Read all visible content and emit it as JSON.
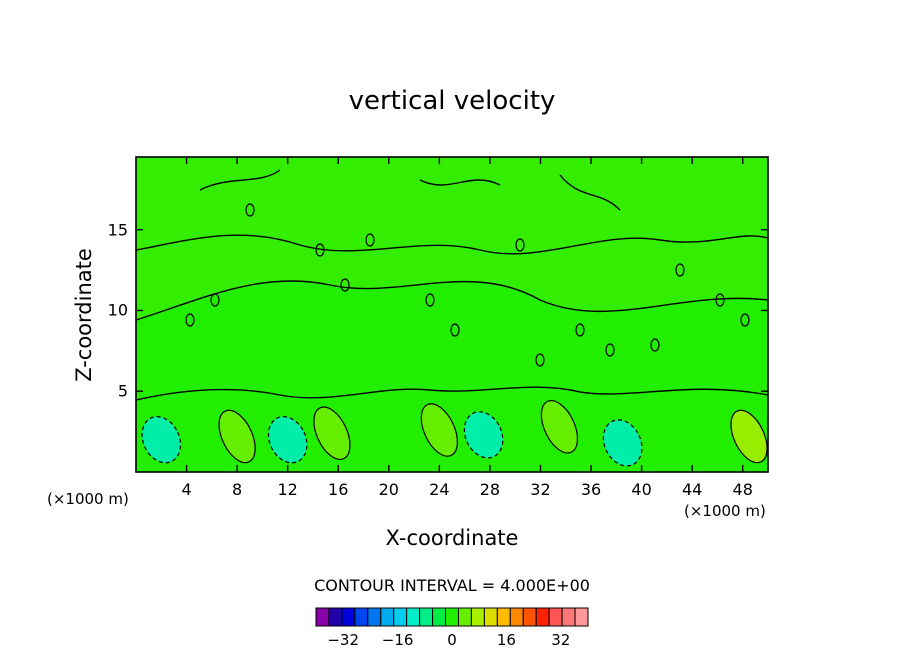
{
  "chart_data": {
    "type": "heatmap",
    "title": "vertical velocity",
    "xlabel": "X-coordinate",
    "ylabel": "Z-coordinate",
    "x_unit_left": "(×1000 m)",
    "x_unit_right": "(×1000 m)",
    "xlim": [
      0,
      50
    ],
    "ylim": [
      0,
      19.5
    ],
    "x_ticks": [
      "4",
      "8",
      "12",
      "16",
      "20",
      "24",
      "28",
      "32",
      "36",
      "40",
      "44",
      "48"
    ],
    "y_ticks": [
      "5",
      "10",
      "15"
    ],
    "contour_interval_text": "CONTOUR INTERVAL = 4.000E+00",
    "colorbar": {
      "ticks": [
        "−32",
        "−16",
        "0",
        "16",
        "32"
      ],
      "tick_values": [
        -32,
        -16,
        0,
        16,
        32
      ],
      "range": [
        -40,
        40
      ],
      "colors": [
        "#8800aa",
        "#2200aa",
        "#0000dd",
        "#0044ee",
        "#0077ee",
        "#00aaee",
        "#00ccee",
        "#00eecc",
        "#00ee88",
        "#00ee44",
        "#22ee00",
        "#66ee00",
        "#aaee00",
        "#dddd00",
        "#ffbb00",
        "#ff8800",
        "#ff5500",
        "#ff2200",
        "#ff5555",
        "#ff7777",
        "#ff9999"
      ]
    },
    "features": [
      {
        "type": "updraft",
        "x": 8,
        "z": 2.2,
        "value": 4
      },
      {
        "type": "updraft",
        "x": 15.5,
        "z": 2.4,
        "value": 4
      },
      {
        "type": "updraft",
        "x": 24,
        "z": 2.6,
        "value": 4
      },
      {
        "type": "updraft",
        "x": 33.5,
        "z": 2.8,
        "value": 4
      },
      {
        "type": "updraft",
        "x": 48.5,
        "z": 2.2,
        "value": 8
      },
      {
        "type": "downdraft",
        "x": 2,
        "z": 2.0,
        "value": -4
      },
      {
        "type": "downdraft",
        "x": 12,
        "z": 2.0,
        "value": -4
      },
      {
        "type": "downdraft",
        "x": 27.5,
        "z": 2.3,
        "value": -4
      },
      {
        "type": "downdraft",
        "x": 38.5,
        "z": 1.8,
        "value": -4
      }
    ]
  }
}
